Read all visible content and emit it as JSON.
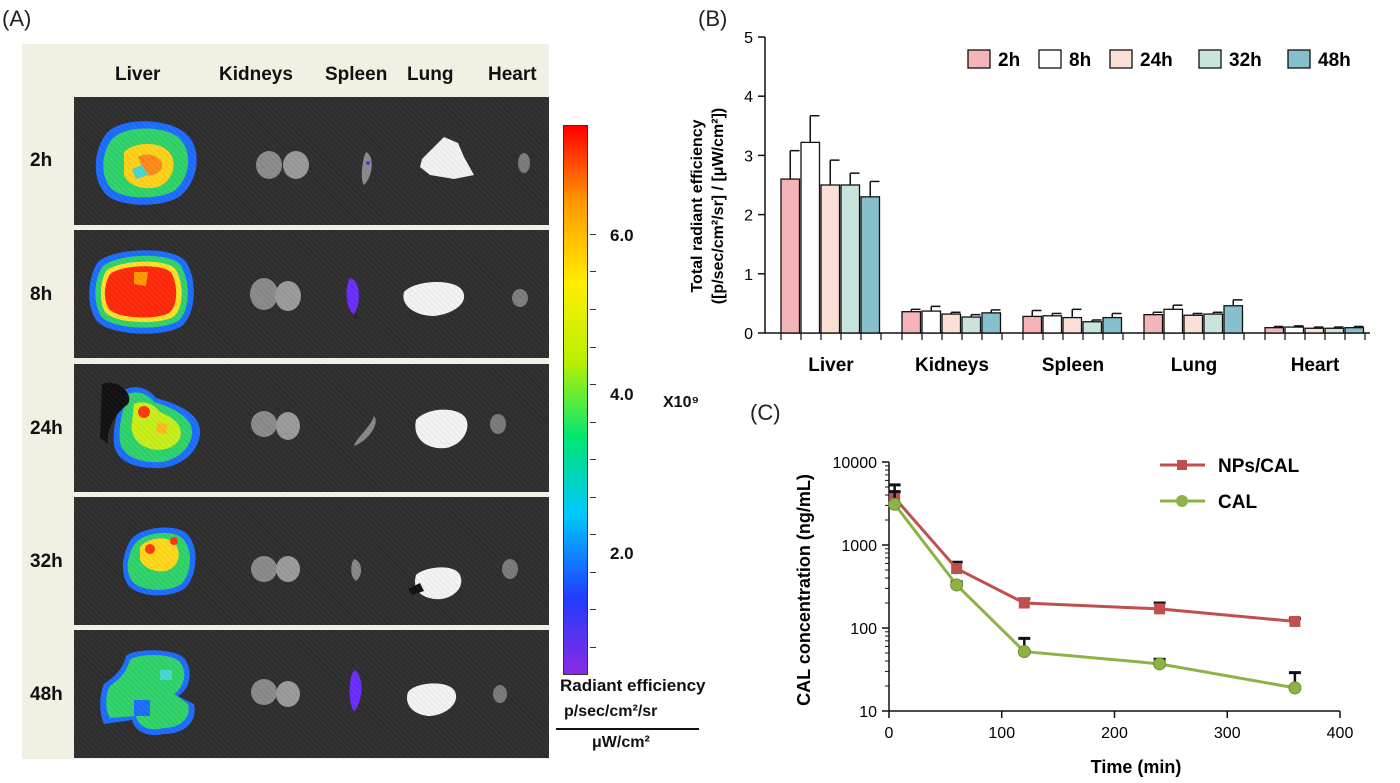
{
  "panels": {
    "a": "(A)",
    "b": "(B)",
    "c": "(C)"
  },
  "imaging": {
    "organs": [
      "Liver",
      "Kidneys",
      "Spleen",
      "Lung",
      "Heart"
    ],
    "timepoints": [
      "2h",
      "8h",
      "24h",
      "32h",
      "48h"
    ],
    "colorbar": {
      "ticks": [
        "6.0",
        "4.0",
        "2.0"
      ],
      "multiplier": "X10⁹",
      "title": "Radiant efficiency",
      "unit_numerator": "p/sec/cm²/sr",
      "unit_denominator": "μW/cm²",
      "colors": [
        "#8a2be2",
        "#1f3cff",
        "#00c8ff",
        "#00e676",
        "#b8f000",
        "#ffee00",
        "#ff9a00",
        "#ff0000"
      ]
    }
  },
  "chart_data": [
    {
      "type": "bar",
      "categories": [
        "Liver",
        "Kidneys",
        "Spleen",
        "Lung",
        "Heart"
      ],
      "series": [
        {
          "name": "2h",
          "color": "#f4b4b8",
          "values": [
            2.6,
            0.36,
            0.28,
            0.31,
            0.09
          ],
          "errors": [
            0.48,
            0.04,
            0.1,
            0.04,
            0.02
          ]
        },
        {
          "name": "8h",
          "color": "#ffffff",
          "values": [
            3.22,
            0.37,
            0.29,
            0.4,
            0.1
          ],
          "errors": [
            0.45,
            0.08,
            0.04,
            0.07,
            0.02
          ]
        },
        {
          "name": "24h",
          "color": "#fbe0d6",
          "values": [
            2.5,
            0.32,
            0.26,
            0.3,
            0.08
          ],
          "errors": [
            0.42,
            0.03,
            0.14,
            0.03,
            0.02
          ]
        },
        {
          "name": "32h",
          "color": "#c9e4dc",
          "values": [
            2.5,
            0.27,
            0.19,
            0.32,
            0.08
          ],
          "errors": [
            0.2,
            0.04,
            0.03,
            0.03,
            0.02
          ]
        },
        {
          "name": "48h",
          "color": "#86c0cc",
          "values": [
            2.3,
            0.34,
            0.26,
            0.46,
            0.09
          ],
          "errors": [
            0.26,
            0.05,
            0.07,
            0.1,
            0.02
          ]
        }
      ],
      "ylabel_line1": "Total radiant efficiency",
      "ylabel_line2": "([p/sec/cm²/sr] / [μW/cm²])",
      "yticks": [
        0,
        1,
        2,
        3,
        4,
        5
      ],
      "ylim": [
        0,
        5
      ],
      "legend": "top-right"
    },
    {
      "type": "line",
      "x_scale": "linear",
      "y_scale": "log",
      "xlabel": "Time (min)",
      "ylabel": "CAL concentration (ng/mL)",
      "xlim": [
        0,
        400
      ],
      "ylim": [
        10,
        10000
      ],
      "xticks": [
        0,
        100,
        200,
        300,
        400
      ],
      "yticks": [
        10,
        100,
        1000,
        10000
      ],
      "series": [
        {
          "name": "NPs/CAL",
          "color": "#c0504d",
          "marker": "square",
          "x": [
            5,
            60,
            120,
            240,
            360
          ],
          "y": [
            3700,
            520,
            200,
            170,
            120
          ],
          "err_up": [
            5300,
            620,
            225,
            200,
            130
          ]
        },
        {
          "name": "CAL",
          "color": "#8db346",
          "marker": "circle",
          "x": [
            5,
            60,
            120,
            240,
            360
          ],
          "y": [
            3100,
            330,
            52,
            37,
            19
          ],
          "err_up": [
            4400,
            360,
            75,
            42,
            29
          ]
        }
      ],
      "legend": "top-right"
    }
  ]
}
